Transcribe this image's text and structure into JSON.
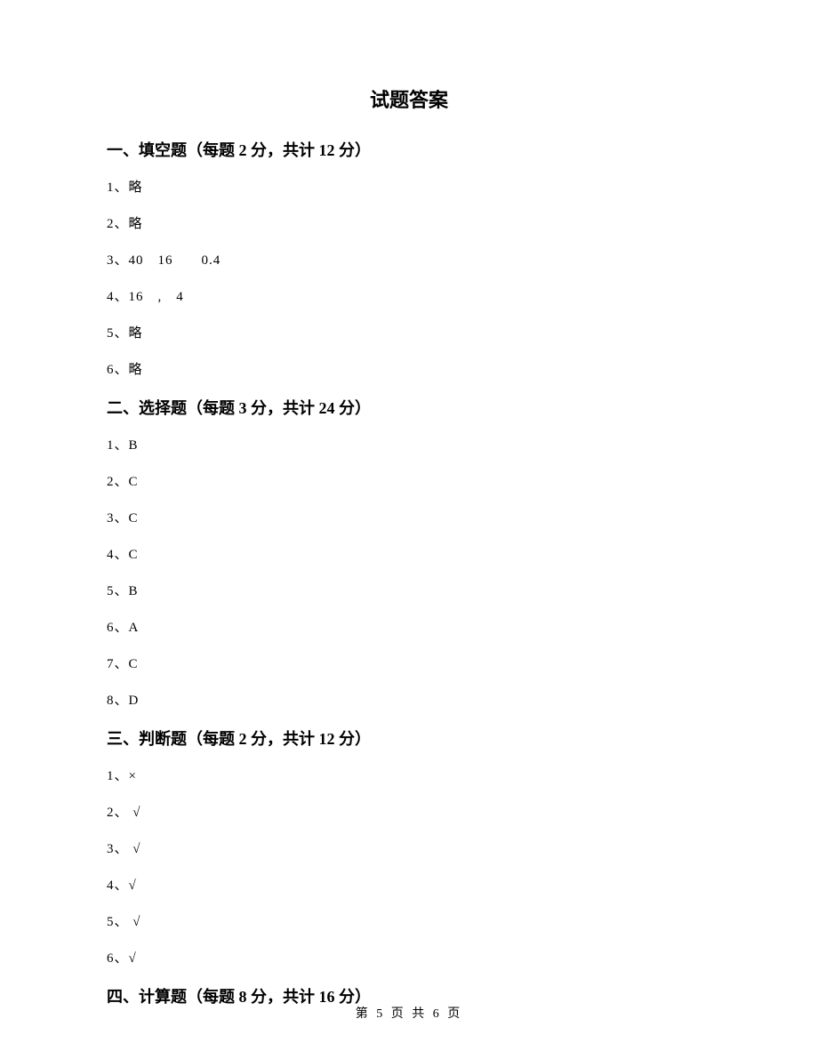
{
  "title": "试题答案",
  "sections": [
    {
      "header": "一、填空题（每题 2 分，共计 12 分）",
      "answers": [
        "1、略",
        "2、略",
        "3、40　16　　0.4",
        "4、16　,　4",
        "5、略",
        "6、略"
      ]
    },
    {
      "header": "二、选择题（每题 3 分，共计 24 分）",
      "answers": [
        "1、B",
        "2、C",
        "3、C",
        "4、C",
        "5、B",
        "6、A",
        "7、C",
        "8、D"
      ]
    },
    {
      "header": "三、判断题（每题 2 分，共计 12 分）",
      "answers": [
        "1、×",
        "2、 √",
        "3、 √",
        "4、√",
        "5、 √",
        "6、√"
      ]
    },
    {
      "header": "四、计算题（每题 8 分，共计 16 分）",
      "answers": []
    }
  ],
  "footer": "第 5 页 共 6 页"
}
